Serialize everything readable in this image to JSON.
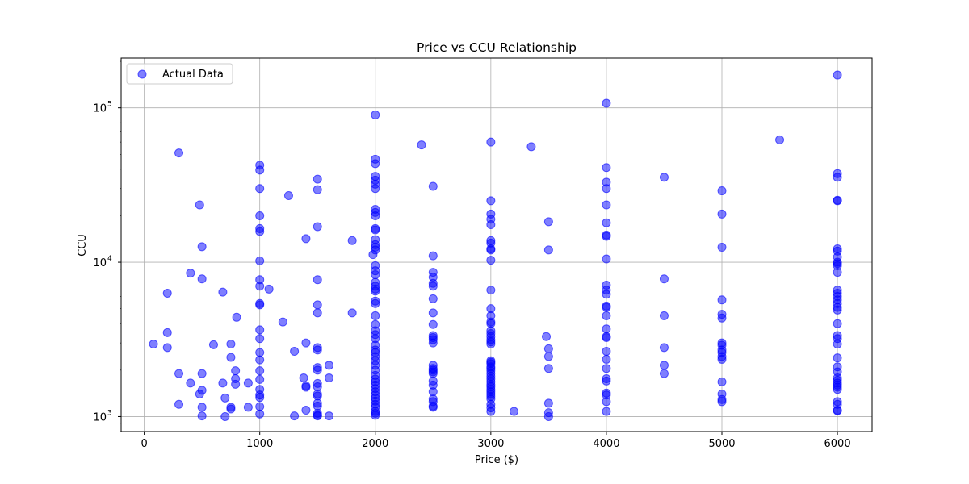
{
  "chart_data": {
    "type": "scatter",
    "title": "Price vs CCU Relationship",
    "xlabel": "Price ($)",
    "ylabel": "CCU",
    "xlim": [
      -200,
      6300
    ],
    "ylim": [
      800,
      210000
    ],
    "yscale": "log",
    "grid": true,
    "legend": {
      "placement": "top-left",
      "entries": [
        "Actual Data"
      ]
    },
    "x_ticks": [
      0,
      1000,
      2000,
      3000,
      4000,
      5000,
      6000
    ],
    "x_tick_labels": [
      "0",
      "1000",
      "2000",
      "3000",
      "4000",
      "5000",
      "6000"
    ],
    "y_ticks": [
      1000,
      10000,
      100000
    ],
    "y_tick_labels": [
      {
        "base": "10",
        "exp": "3"
      },
      {
        "base": "10",
        "exp": "4"
      },
      {
        "base": "10",
        "exp": "5"
      }
    ],
    "series": [
      {
        "name": "Actual Data",
        "color": "#0000ff",
        "points": [
          [
            80,
            2950
          ],
          [
            200,
            6300
          ],
          [
            200,
            3500
          ],
          [
            200,
            2800
          ],
          [
            300,
            51000
          ],
          [
            300,
            1900
          ],
          [
            300,
            1200
          ],
          [
            400,
            8500
          ],
          [
            400,
            1650
          ],
          [
            480,
            23500
          ],
          [
            480,
            1400
          ],
          [
            500,
            12600
          ],
          [
            500,
            7800
          ],
          [
            500,
            1900
          ],
          [
            500,
            1480
          ],
          [
            500,
            1150
          ],
          [
            500,
            1010
          ],
          [
            600,
            2920
          ],
          [
            680,
            6400
          ],
          [
            680,
            1650
          ],
          [
            700,
            1320
          ],
          [
            700,
            1000
          ],
          [
            750,
            2950
          ],
          [
            750,
            2420
          ],
          [
            750,
            1150
          ],
          [
            750,
            1120
          ],
          [
            790,
            1980
          ],
          [
            790,
            1760
          ],
          [
            790,
            1620
          ],
          [
            800,
            4400
          ],
          [
            900,
            1650
          ],
          [
            900,
            1150
          ],
          [
            1000,
            42500
          ],
          [
            1000,
            39500
          ],
          [
            1000,
            30000
          ],
          [
            1000,
            20000
          ],
          [
            1000,
            16500
          ],
          [
            1000,
            15800
          ],
          [
            1000,
            10200
          ],
          [
            1000,
            7700
          ],
          [
            1000,
            7000
          ],
          [
            1000,
            5400
          ],
          [
            1000,
            5300
          ],
          [
            1000,
            3650
          ],
          [
            1000,
            3200
          ],
          [
            1000,
            2600
          ],
          [
            1000,
            2330
          ],
          [
            1000,
            1980
          ],
          [
            1000,
            1740
          ],
          [
            1000,
            1500
          ],
          [
            1000,
            1380
          ],
          [
            1000,
            1330
          ],
          [
            1000,
            1160
          ],
          [
            1000,
            1040
          ],
          [
            1080,
            6700
          ],
          [
            1200,
            4100
          ],
          [
            1250,
            27000
          ],
          [
            1300,
            2650
          ],
          [
            1300,
            1010
          ],
          [
            1380,
            1780
          ],
          [
            1400,
            14200
          ],
          [
            1400,
            3000
          ],
          [
            1400,
            1580
          ],
          [
            1400,
            1550
          ],
          [
            1400,
            1100
          ],
          [
            1500,
            34500
          ],
          [
            1500,
            29500
          ],
          [
            1500,
            17000
          ],
          [
            1500,
            7700
          ],
          [
            1500,
            5300
          ],
          [
            1500,
            4700
          ],
          [
            1500,
            2800
          ],
          [
            1500,
            2700
          ],
          [
            1500,
            2080
          ],
          [
            1500,
            2000
          ],
          [
            1500,
            1640
          ],
          [
            1500,
            1560
          ],
          [
            1500,
            1400
          ],
          [
            1500,
            1360
          ],
          [
            1500,
            1220
          ],
          [
            1500,
            1170
          ],
          [
            1500,
            1050
          ],
          [
            1500,
            1020
          ],
          [
            1500,
            1010
          ],
          [
            1600,
            2150
          ],
          [
            1600,
            1780
          ],
          [
            1600,
            1010
          ],
          [
            1800,
            13800
          ],
          [
            1800,
            4700
          ],
          [
            1980,
            11200
          ],
          [
            2000,
            90000
          ],
          [
            2000,
            46500
          ],
          [
            2000,
            43500
          ],
          [
            2000,
            36000
          ],
          [
            2000,
            34000
          ],
          [
            2000,
            32000
          ],
          [
            2000,
            30000
          ],
          [
            2000,
            22000
          ],
          [
            2000,
            21000
          ],
          [
            2000,
            20000
          ],
          [
            2000,
            16500
          ],
          [
            2000,
            16200
          ],
          [
            2000,
            14000
          ],
          [
            2000,
            13000
          ],
          [
            2000,
            12500
          ],
          [
            2000,
            12000
          ],
          [
            2000,
            9500
          ],
          [
            2000,
            8800
          ],
          [
            2000,
            8300
          ],
          [
            2000,
            7400
          ],
          [
            2000,
            7000
          ],
          [
            2000,
            6700
          ],
          [
            2000,
            6500
          ],
          [
            2000,
            5600
          ],
          [
            2000,
            5400
          ],
          [
            2000,
            4500
          ],
          [
            2000,
            3950
          ],
          [
            2000,
            3600
          ],
          [
            2000,
            3400
          ],
          [
            2000,
            3200
          ],
          [
            2000,
            2900
          ],
          [
            2000,
            2700
          ],
          [
            2000,
            2600
          ],
          [
            2000,
            2450
          ],
          [
            2000,
            2300
          ],
          [
            2000,
            2150
          ],
          [
            2000,
            2000
          ],
          [
            2000,
            1850
          ],
          [
            2000,
            1750
          ],
          [
            2000,
            1680
          ],
          [
            2000,
            1600
          ],
          [
            2000,
            1520
          ],
          [
            2000,
            1450
          ],
          [
            2000,
            1380
          ],
          [
            2000,
            1320
          ],
          [
            2000,
            1260
          ],
          [
            2000,
            1200
          ],
          [
            2000,
            1150
          ],
          [
            2000,
            1080
          ],
          [
            2000,
            1050
          ],
          [
            2000,
            1020
          ],
          [
            2400,
            57500
          ],
          [
            2500,
            31000
          ],
          [
            2500,
            11000
          ],
          [
            2500,
            8600
          ],
          [
            2500,
            8000
          ],
          [
            2500,
            7300
          ],
          [
            2500,
            7000
          ],
          [
            2500,
            5800
          ],
          [
            2500,
            4700
          ],
          [
            2500,
            3950
          ],
          [
            2500,
            3350
          ],
          [
            2500,
            3250
          ],
          [
            2500,
            3150
          ],
          [
            2500,
            3000
          ],
          [
            2500,
            2150
          ],
          [
            2500,
            2050
          ],
          [
            2500,
            2000
          ],
          [
            2500,
            1950
          ],
          [
            2500,
            1900
          ],
          [
            2500,
            1700
          ],
          [
            2500,
            1600
          ],
          [
            2500,
            1450
          ],
          [
            2500,
            1300
          ],
          [
            2500,
            1250
          ],
          [
            2500,
            1170
          ],
          [
            2500,
            1150
          ],
          [
            3000,
            60000
          ],
          [
            3000,
            25000
          ],
          [
            3000,
            20500
          ],
          [
            3000,
            19000
          ],
          [
            3000,
            17500
          ],
          [
            3000,
            13800
          ],
          [
            3000,
            13300
          ],
          [
            3000,
            12200
          ],
          [
            3000,
            12000
          ],
          [
            3000,
            10300
          ],
          [
            3000,
            6600
          ],
          [
            3000,
            5000
          ],
          [
            3000,
            4500
          ],
          [
            3000,
            4100
          ],
          [
            3000,
            4000
          ],
          [
            3000,
            3600
          ],
          [
            3000,
            3450
          ],
          [
            3000,
            3300
          ],
          [
            3000,
            3150
          ],
          [
            3000,
            3050
          ],
          [
            3000,
            2950
          ],
          [
            3000,
            2300
          ],
          [
            3000,
            2250
          ],
          [
            3000,
            2200
          ],
          [
            3000,
            2100
          ],
          [
            3000,
            2050
          ],
          [
            3000,
            1980
          ],
          [
            3000,
            1900
          ],
          [
            3000,
            1820
          ],
          [
            3000,
            1750
          ],
          [
            3000,
            1680
          ],
          [
            3000,
            1610
          ],
          [
            3000,
            1560
          ],
          [
            3000,
            1500
          ],
          [
            3000,
            1450
          ],
          [
            3000,
            1400
          ],
          [
            3000,
            1350
          ],
          [
            3000,
            1300
          ],
          [
            3000,
            1200
          ],
          [
            3000,
            1140
          ],
          [
            3000,
            1080
          ],
          [
            3200,
            1080
          ],
          [
            3350,
            56000
          ],
          [
            3480,
            3300
          ],
          [
            3500,
            18300
          ],
          [
            3500,
            12000
          ],
          [
            3500,
            2750
          ],
          [
            3500,
            2450
          ],
          [
            3500,
            2050
          ],
          [
            3500,
            1220
          ],
          [
            3500,
            1060
          ],
          [
            3500,
            1000
          ],
          [
            4000,
            107000
          ],
          [
            4000,
            41000
          ],
          [
            4000,
            33000
          ],
          [
            4000,
            30000
          ],
          [
            4000,
            23500
          ],
          [
            4000,
            18000
          ],
          [
            4000,
            15000
          ],
          [
            4000,
            14700
          ],
          [
            4000,
            10500
          ],
          [
            4000,
            7100
          ],
          [
            4000,
            6600
          ],
          [
            4000,
            6200
          ],
          [
            4000,
            5200
          ],
          [
            4000,
            5100
          ],
          [
            4000,
            4500
          ],
          [
            4000,
            3700
          ],
          [
            4000,
            3300
          ],
          [
            4000,
            3250
          ],
          [
            4000,
            2650
          ],
          [
            4000,
            2350
          ],
          [
            4000,
            2050
          ],
          [
            4000,
            1760
          ],
          [
            4000,
            1700
          ],
          [
            4000,
            1420
          ],
          [
            4000,
            1380
          ],
          [
            4000,
            1250
          ],
          [
            4000,
            1080
          ],
          [
            4500,
            35500
          ],
          [
            4500,
            7800
          ],
          [
            4500,
            4500
          ],
          [
            4500,
            2800
          ],
          [
            4500,
            2150
          ],
          [
            4500,
            1900
          ],
          [
            5000,
            29000
          ],
          [
            5000,
            20500
          ],
          [
            5000,
            12500
          ],
          [
            5000,
            5700
          ],
          [
            5000,
            4600
          ],
          [
            5000,
            4350
          ],
          [
            5000,
            3000
          ],
          [
            5000,
            2900
          ],
          [
            5000,
            2700
          ],
          [
            5000,
            2600
          ],
          [
            5000,
            2450
          ],
          [
            5000,
            2350
          ],
          [
            5000,
            1680
          ],
          [
            5000,
            1400
          ],
          [
            5000,
            1290
          ],
          [
            5000,
            1250
          ],
          [
            5500,
            62000
          ],
          [
            6000,
            163000
          ],
          [
            6000,
            37500
          ],
          [
            6000,
            35500
          ],
          [
            6000,
            25200
          ],
          [
            6000,
            25000
          ],
          [
            6000,
            12200
          ],
          [
            6000,
            11800
          ],
          [
            6000,
            10800
          ],
          [
            6000,
            10000
          ],
          [
            6000,
            9800
          ],
          [
            6000,
            9500
          ],
          [
            6000,
            8600
          ],
          [
            6000,
            6600
          ],
          [
            6000,
            6300
          ],
          [
            6000,
            6000
          ],
          [
            6000,
            5700
          ],
          [
            6000,
            5400
          ],
          [
            6000,
            5100
          ],
          [
            6000,
            4900
          ],
          [
            6000,
            4000
          ],
          [
            6000,
            3350
          ],
          [
            6000,
            3200
          ],
          [
            6000,
            2950
          ],
          [
            6000,
            2400
          ],
          [
            6000,
            2100
          ],
          [
            6000,
            1950
          ],
          [
            6000,
            1780
          ],
          [
            6000,
            1720
          ],
          [
            6000,
            1650
          ],
          [
            6000,
            1600
          ],
          [
            6000,
            1550
          ],
          [
            6000,
            1500
          ],
          [
            6000,
            1250
          ],
          [
            6000,
            1200
          ],
          [
            6000,
            1100
          ],
          [
            6000,
            1090
          ]
        ]
      }
    ]
  }
}
